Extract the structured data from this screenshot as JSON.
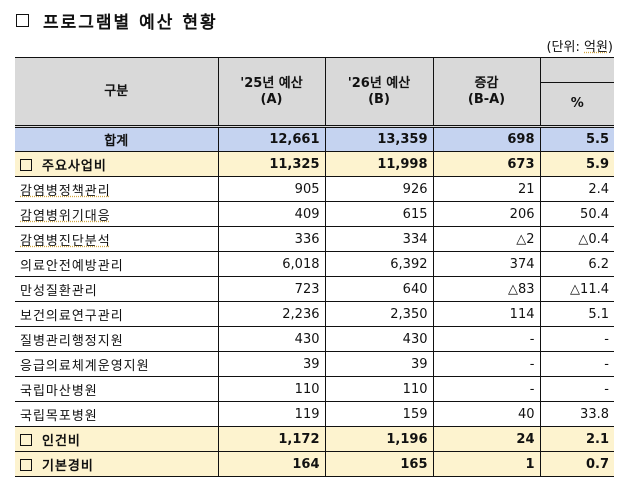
{
  "title": {
    "text": "프로그램별 예산 현황",
    "bullet_icon": "square-bullet"
  },
  "unit": {
    "prefix": "(단위: ",
    "value": "억원",
    "suffix": ")"
  },
  "table": {
    "headers": {
      "category": "구분",
      "a_line1": "'25년 예산",
      "a_line2": "(A)",
      "b_line1": "'26년 예산",
      "b_line2": "(B)",
      "diff_line1": "증감",
      "diff_line2": "(B-A)",
      "pct": "%"
    },
    "total": {
      "label": "합계",
      "a": "12,661",
      "b": "13,359",
      "diff": "698",
      "pct": "5.5"
    },
    "groups": [
      {
        "label": "주요사업비",
        "a": "11,325",
        "b": "11,998",
        "diff": "673",
        "pct": "5.9",
        "items": [
          {
            "label": "감염병정책관리",
            "a": "905",
            "b": "926",
            "diff": "21",
            "pct": "2.4"
          },
          {
            "label": "감염병위기대응",
            "a": "409",
            "b": "615",
            "diff": "206",
            "pct": "50.4"
          },
          {
            "label": "감염병진단분석",
            "a": "336",
            "b": "334",
            "diff": "△2",
            "pct": "△0.4"
          },
          {
            "label": "의료안전예방관리",
            "a": "6,018",
            "b": "6,392",
            "diff": "374",
            "pct": "6.2"
          },
          {
            "label": "만성질환관리",
            "a": "723",
            "b": "640",
            "diff": "△83",
            "pct": "△11.4"
          },
          {
            "label": "보건의료연구관리",
            "a": "2,236",
            "b": "2,350",
            "diff": "114",
            "pct": "5.1"
          },
          {
            "label": "질병관리행정지원",
            "a": "430",
            "b": "430",
            "diff": "-",
            "pct": "-"
          },
          {
            "label": "응급의료체계운영지원",
            "a": "39",
            "b": "39",
            "diff": "-",
            "pct": "-"
          },
          {
            "label": "국립마산병원",
            "a": "110",
            "b": "110",
            "diff": "-",
            "pct": "-"
          },
          {
            "label": "국립목포병원",
            "a": "119",
            "b": "159",
            "diff": "40",
            "pct": "33.8"
          }
        ]
      },
      {
        "label": "인건비",
        "a": "1,172",
        "b": "1,196",
        "diff": "24",
        "pct": "2.1"
      },
      {
        "label": "기본경비",
        "a": "164",
        "b": "165",
        "diff": "1",
        "pct": "0.7"
      }
    ]
  },
  "colors": {
    "header_bg": "#d9d9d9",
    "total_bg": "#c5d3f0",
    "subtotal_bg": "#fdf3cf"
  }
}
